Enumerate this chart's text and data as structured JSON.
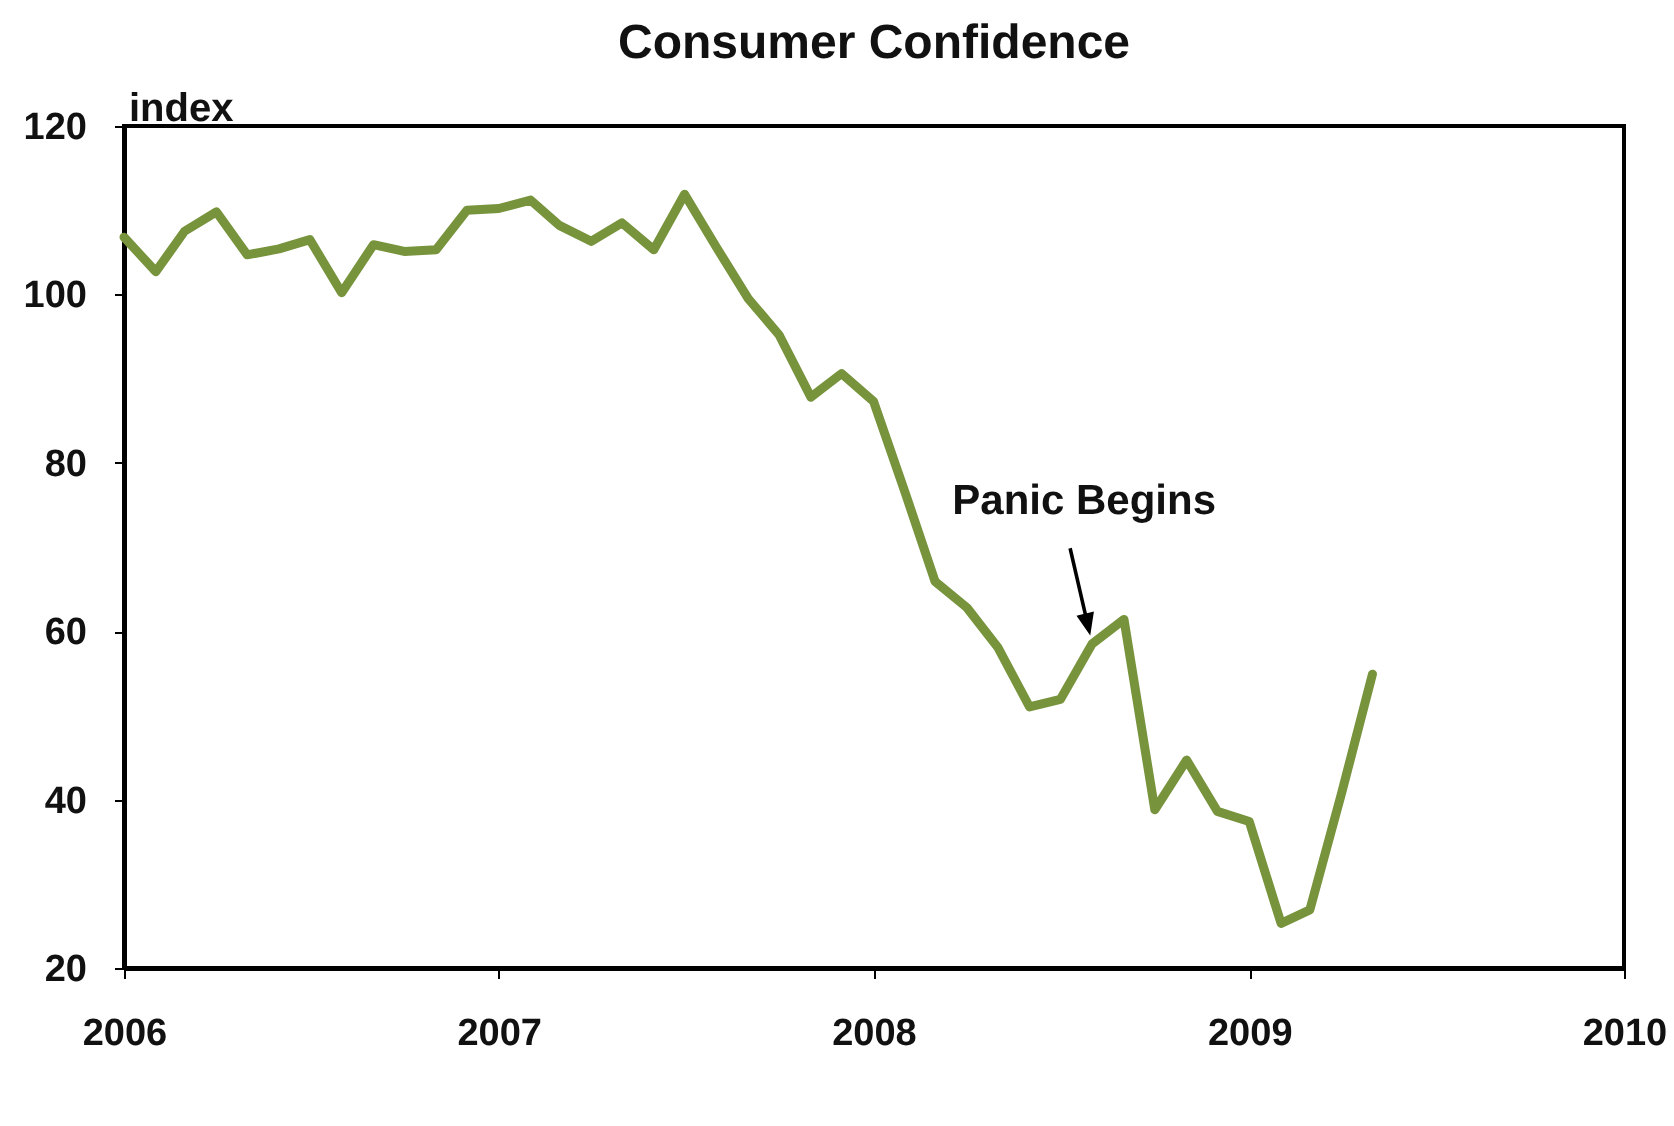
{
  "chart_data": {
    "type": "line",
    "title": "Consumer Confidence",
    "ylabel": "index",
    "x": [
      "2006-01",
      "2006-02",
      "2006-03",
      "2006-04",
      "2006-05",
      "2006-06",
      "2006-07",
      "2006-08",
      "2006-09",
      "2006-10",
      "2006-11",
      "2006-12",
      "2007-01",
      "2007-02",
      "2007-03",
      "2007-04",
      "2007-05",
      "2007-06",
      "2007-07",
      "2007-08",
      "2007-09",
      "2007-10",
      "2007-11",
      "2007-12",
      "2008-01",
      "2008-02",
      "2008-03",
      "2008-04",
      "2008-05",
      "2008-06",
      "2008-07",
      "2008-08",
      "2008-09",
      "2008-10",
      "2008-11",
      "2008-12",
      "2009-01",
      "2009-02",
      "2009-03",
      "2009-04",
      "2009-05"
    ],
    "series": [
      {
        "color": "#77933c",
        "values": [
          106.8,
          102.7,
          107.5,
          109.8,
          104.7,
          105.4,
          106.5,
          100.2,
          105.9,
          105.1,
          105.3,
          110.0,
          110.2,
          111.2,
          108.2,
          106.3,
          108.5,
          105.3,
          111.9,
          105.6,
          99.5,
          95.2,
          87.8,
          90.6,
          87.3,
          76.4,
          65.9,
          62.8,
          58.1,
          51.0,
          51.9,
          58.5,
          61.4,
          38.8,
          44.7,
          38.6,
          37.4,
          25.3,
          26.9,
          40.8,
          54.9
        ]
      }
    ],
    "xlim": [
      "2006",
      "2010"
    ],
    "xticks": [
      "2006",
      "2007",
      "2008",
      "2009",
      "2010"
    ],
    "ylim": [
      20,
      120
    ],
    "yticks": [
      20,
      40,
      60,
      80,
      100,
      120
    ],
    "annotations": [
      {
        "text": "Panic Begins",
        "x": "2008-08",
        "y": 58.5
      }
    ],
    "grid": false,
    "marker": "none",
    "line_style": "solid"
  }
}
